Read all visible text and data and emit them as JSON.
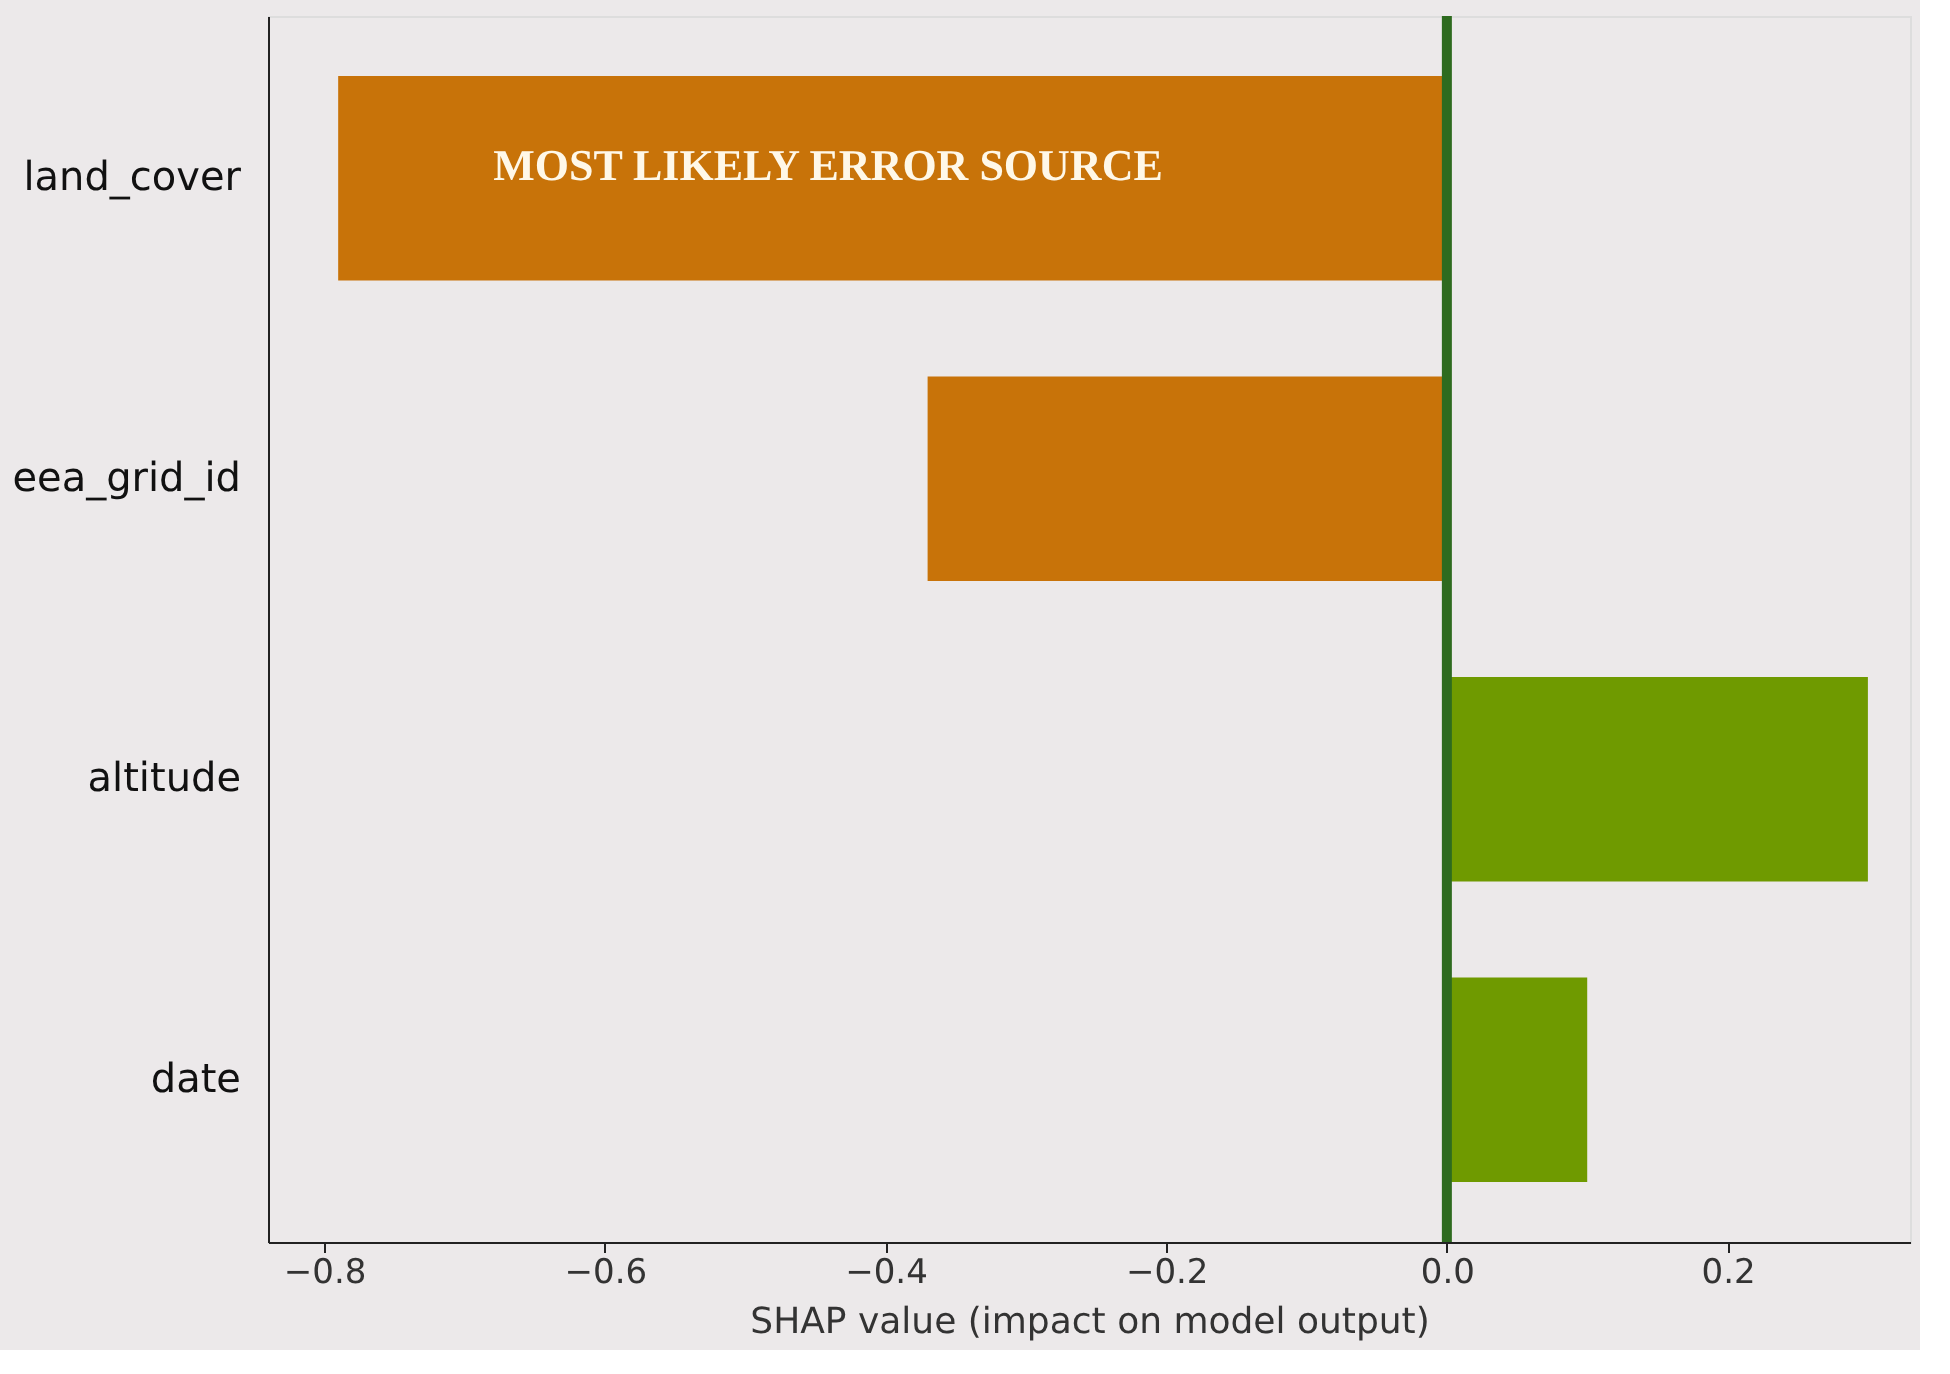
{
  "chart_data": {
    "type": "bar",
    "orientation": "horizontal",
    "categories": [
      "land_cover",
      "eea_grid_id",
      "altitude",
      "date"
    ],
    "values": [
      -0.79,
      -0.37,
      0.3,
      0.1
    ],
    "colors": [
      "#c87309",
      "#c87309",
      "#6f9a00",
      "#6f9a00"
    ],
    "xlabel": "SHAP value (impact on model output)",
    "xlim": [
      -0.84,
      0.33
    ],
    "xticks": [
      {
        "value": -0.8,
        "label": "−0.8"
      },
      {
        "value": -0.6,
        "label": "−0.6"
      },
      {
        "value": -0.4,
        "label": "−0.4"
      },
      {
        "value": -0.2,
        "label": "−0.2"
      },
      {
        "value": 0.0,
        "label": "0.0"
      },
      {
        "value": 0.2,
        "label": "0.2"
      }
    ],
    "ref_lines": [
      {
        "axis": "x",
        "value": 0.0,
        "color": "#2e6b1f"
      }
    ],
    "annotations": [
      "MOST LIKELY ERROR SOURCE"
    ],
    "grid": false,
    "legend": false
  }
}
